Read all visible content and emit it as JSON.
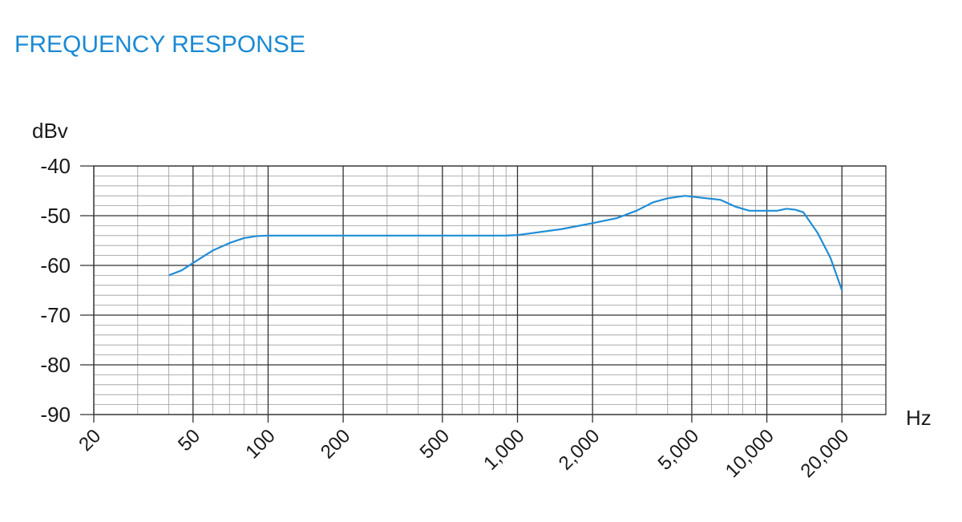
{
  "chart_data": {
    "type": "line",
    "title": "FREQUENCY RESPONSE",
    "y_label": "dBv",
    "x_label": "Hz",
    "log_x": true,
    "grid": true,
    "color": "#1f8dd6",
    "xlim": [
      20,
      30000
    ],
    "ylim": [
      -90,
      -40
    ],
    "xticks": [
      20,
      50,
      100,
      200,
      500,
      {
        "value": 1000,
        "label": "1,000"
      },
      {
        "value": 2000,
        "label": "2,000"
      },
      {
        "value": 5000,
        "label": "5,000"
      },
      {
        "value": 10000,
        "label": "10,000"
      },
      {
        "value": 20000,
        "label": "20,000"
      }
    ],
    "yticks": [
      -90,
      -80,
      -70,
      -60,
      -50,
      -40
    ],
    "x": [
      40,
      45,
      50,
      60,
      70,
      80,
      90,
      100,
      200,
      500,
      900,
      1000,
      1500,
      2000,
      2500,
      3000,
      3500,
      4000,
      4700,
      5500,
      6500,
      7500,
      8500,
      10000,
      11000,
      12000,
      13000,
      14000,
      16000,
      18000,
      20000
    ],
    "values": [
      -62,
      -61,
      -59.5,
      -57,
      -55.5,
      -54.5,
      -54.1,
      -54,
      -54,
      -54,
      -54,
      -53.9,
      -52.7,
      -51.5,
      -50.5,
      -49,
      -47.3,
      -46.5,
      -46,
      -46.4,
      -46.8,
      -48.2,
      -49,
      -49,
      -49,
      -48.6,
      -48.8,
      -49.3,
      -53.5,
      -58.5,
      -65
    ]
  }
}
